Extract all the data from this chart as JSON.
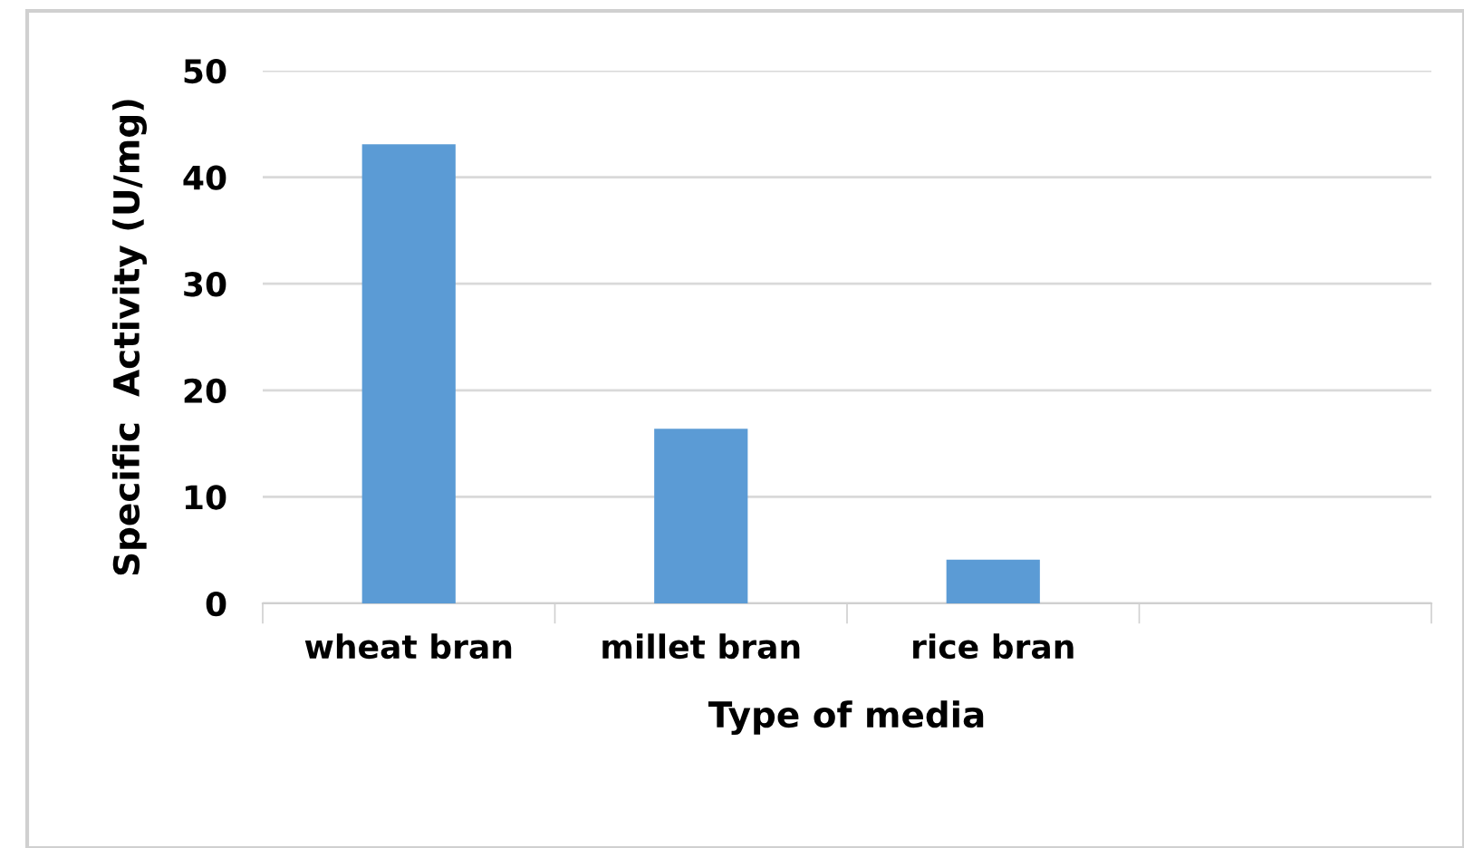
{
  "chart_data": {
    "type": "bar",
    "xlabel": "Type of media",
    "ylabel": "Specific  Activity (U/mg)",
    "categories": [
      "wheat bran",
      "millet bran",
      "rice bran",
      null
    ],
    "values": [
      43.1,
      16.4,
      4.1,
      null
    ],
    "color": "#5b9bd5",
    "ylim": [
      0,
      50
    ],
    "yticks": [
      0,
      10,
      20,
      30,
      40,
      50
    ],
    "grid": "y"
  }
}
